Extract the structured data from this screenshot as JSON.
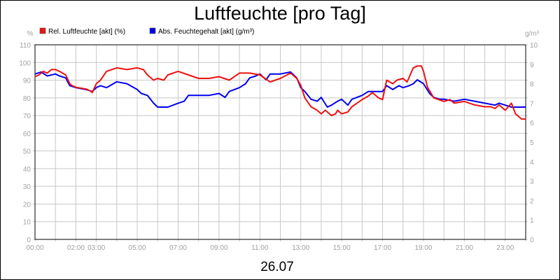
{
  "chart_data": {
    "type": "line",
    "title": "Luftfeuchte [pro Tag]",
    "date_label": "26.07",
    "x_unit": "hours",
    "xlim": [
      0,
      24
    ],
    "x_tick_labels": [
      "00:00",
      "02:00",
      "03:00",
      "05:00",
      "07:00",
      "09:00",
      "11:00",
      "13:00",
      "15:00",
      "17:00",
      "19:00",
      "21:00",
      "23:00"
    ],
    "x_tick_hours": [
      0,
      2,
      3,
      5,
      7,
      9,
      11,
      13,
      15,
      17,
      19,
      21,
      23
    ],
    "grid": true,
    "legend_position": "top-left",
    "y_left": {
      "unit": "%",
      "ylim": [
        0,
        110
      ],
      "ticks": [
        "0",
        "10",
        "20",
        "30",
        "40",
        "50",
        "60",
        "70",
        "80",
        "90",
        "100",
        "110"
      ]
    },
    "y_right": {
      "unit": "g/m³",
      "ylim": [
        0,
        10
      ],
      "ticks": [
        "0",
        "1",
        "2",
        "3",
        "4",
        "5",
        "6",
        "7",
        "8",
        "9",
        "10"
      ]
    },
    "series": [
      {
        "name": "Rel. Luftfeuchte [akt] (%)",
        "color": "#ee1111",
        "axis": "left",
        "x": [
          0,
          0.2,
          0.4,
          0.6,
          0.8,
          1.0,
          1.2,
          1.5,
          1.7,
          1.8,
          2.0,
          2.5,
          2.7,
          2.8,
          3.0,
          3.2,
          3.5,
          4.0,
          4.5,
          5.0,
          5.3,
          5.5,
          5.7,
          5.8,
          6.0,
          6.3,
          6.5,
          7.0,
          7.5,
          8.0,
          8.5,
          9.0,
          9.5,
          10.0,
          10.5,
          11.0,
          11.5,
          12.0,
          12.5,
          12.8,
          13.0,
          13.2,
          13.5,
          13.8,
          14.0,
          14.2,
          14.5,
          14.7,
          14.8,
          15.0,
          15.3,
          15.5,
          16.0,
          16.3,
          16.5,
          16.8,
          17.0,
          17.2,
          17.5,
          17.7,
          18.0,
          18.2,
          18.5,
          18.7,
          18.9,
          19.0,
          19.2,
          19.5,
          20.0,
          20.3,
          20.5,
          21.0,
          21.5,
          22.0,
          22.3,
          22.5,
          22.7,
          23.0,
          23.3,
          23.5,
          23.8,
          24.0
        ],
        "values": [
          92,
          93,
          95,
          94,
          96,
          96,
          95,
          93,
          88,
          87,
          86,
          85,
          84,
          83,
          88,
          90,
          95,
          97,
          96,
          97,
          96,
          93,
          91,
          90,
          91,
          90,
          93,
          95,
          93,
          91,
          91,
          92,
          90,
          94,
          94,
          93,
          89,
          91,
          94,
          91,
          87,
          80,
          75,
          73,
          71,
          73,
          70,
          71,
          73,
          71,
          72,
          75,
          79,
          81,
          83,
          80,
          79,
          90,
          88,
          90,
          91,
          89,
          97,
          98,
          98,
          95,
          86,
          80,
          78,
          79,
          77,
          78,
          76,
          75,
          75,
          74,
          76,
          73,
          77,
          71,
          68,
          68
        ]
      },
      {
        "name": "Abs. Feuchtegehalt [akt] (g/m³)",
        "color": "#0000ee",
        "axis": "right",
        "x": [
          0,
          0.3,
          0.6,
          1.0,
          1.2,
          1.5,
          1.7,
          2.0,
          2.5,
          2.8,
          3.0,
          3.2,
          3.5,
          4.0,
          4.5,
          5.0,
          5.2,
          5.5,
          5.8,
          6.0,
          6.3,
          6.5,
          7.0,
          7.3,
          7.5,
          8.0,
          8.5,
          9.0,
          9.3,
          9.5,
          10.0,
          10.3,
          10.5,
          10.8,
          11.0,
          11.3,
          11.5,
          12.0,
          12.5,
          12.8,
          13.0,
          13.2,
          13.5,
          13.8,
          14.0,
          14.3,
          14.5,
          14.8,
          15.0,
          15.3,
          15.5,
          16.0,
          16.3,
          16.5,
          17.0,
          17.2,
          17.5,
          17.8,
          18.0,
          18.3,
          18.5,
          18.7,
          19.0,
          19.3,
          19.5,
          19.8,
          20.0,
          20.5,
          21.0,
          21.5,
          22.0,
          22.5,
          22.7,
          23.0,
          23.3,
          23.7,
          24.0
        ],
        "values": [
          8.5,
          8.6,
          8.4,
          8.5,
          8.4,
          8.3,
          7.9,
          7.8,
          7.7,
          7.6,
          7.8,
          7.9,
          7.8,
          8.1,
          8.0,
          7.7,
          7.5,
          7.4,
          7.0,
          6.8,
          6.8,
          6.8,
          7.0,
          7.1,
          7.4,
          7.4,
          7.4,
          7.5,
          7.3,
          7.6,
          7.8,
          8.0,
          8.3,
          8.4,
          8.5,
          8.2,
          8.5,
          8.5,
          8.6,
          8.3,
          7.8,
          7.6,
          7.2,
          7.1,
          7.3,
          6.8,
          6.9,
          7.1,
          7.2,
          6.9,
          7.2,
          7.4,
          7.6,
          7.6,
          7.6,
          7.9,
          7.7,
          7.9,
          7.8,
          7.9,
          8.0,
          8.2,
          8.0,
          7.5,
          7.3,
          7.2,
          7.2,
          7.1,
          7.2,
          7.1,
          7.0,
          6.9,
          7.0,
          6.9,
          6.8,
          6.8,
          6.8
        ]
      }
    ]
  }
}
